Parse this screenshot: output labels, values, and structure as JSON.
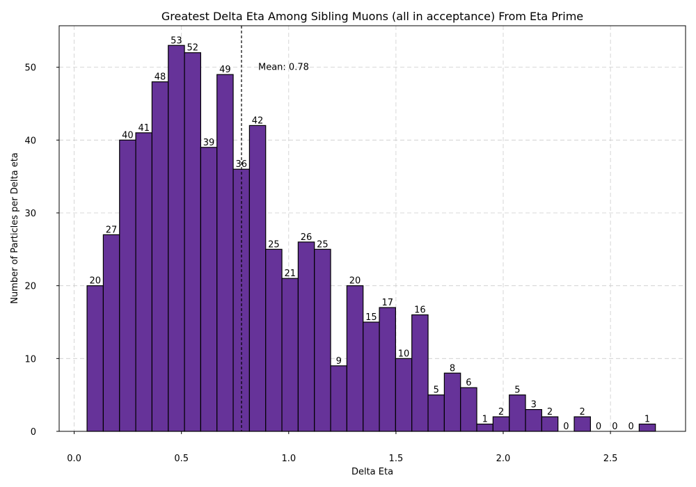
{
  "chart_data": {
    "type": "bar",
    "title": "Greatest Delta Eta Among Sibling Muons (all in acceptance) From Eta Prime",
    "xlabel": "Delta Eta",
    "ylabel": "Number of Particles per Delta eta",
    "xlim": [
      -0.07,
      2.85
    ],
    "ylim": [
      0,
      55.7
    ],
    "x_ticks": [
      0.0,
      0.5,
      1.0,
      1.5,
      2.0,
      2.5
    ],
    "x_tick_labels": [
      "0.0",
      "0.5",
      "1.0",
      "1.5",
      "2.0",
      "2.5"
    ],
    "y_ticks": [
      0,
      10,
      20,
      30,
      40,
      50
    ],
    "y_tick_labels": [
      "0",
      "10",
      "20",
      "30",
      "40",
      "50"
    ],
    "grid": true,
    "bar_color": "#663399",
    "bin_start": 0.06,
    "bin_width": 0.0757,
    "values": [
      20,
      27,
      40,
      41,
      48,
      53,
      52,
      39,
      49,
      36,
      42,
      25,
      21,
      26,
      25,
      9,
      20,
      15,
      17,
      10,
      16,
      5,
      8,
      6,
      1,
      2,
      5,
      3,
      2,
      0,
      2,
      0,
      0,
      0,
      1
    ],
    "mean": 0.78,
    "mean_label": "Mean: 0.78"
  }
}
